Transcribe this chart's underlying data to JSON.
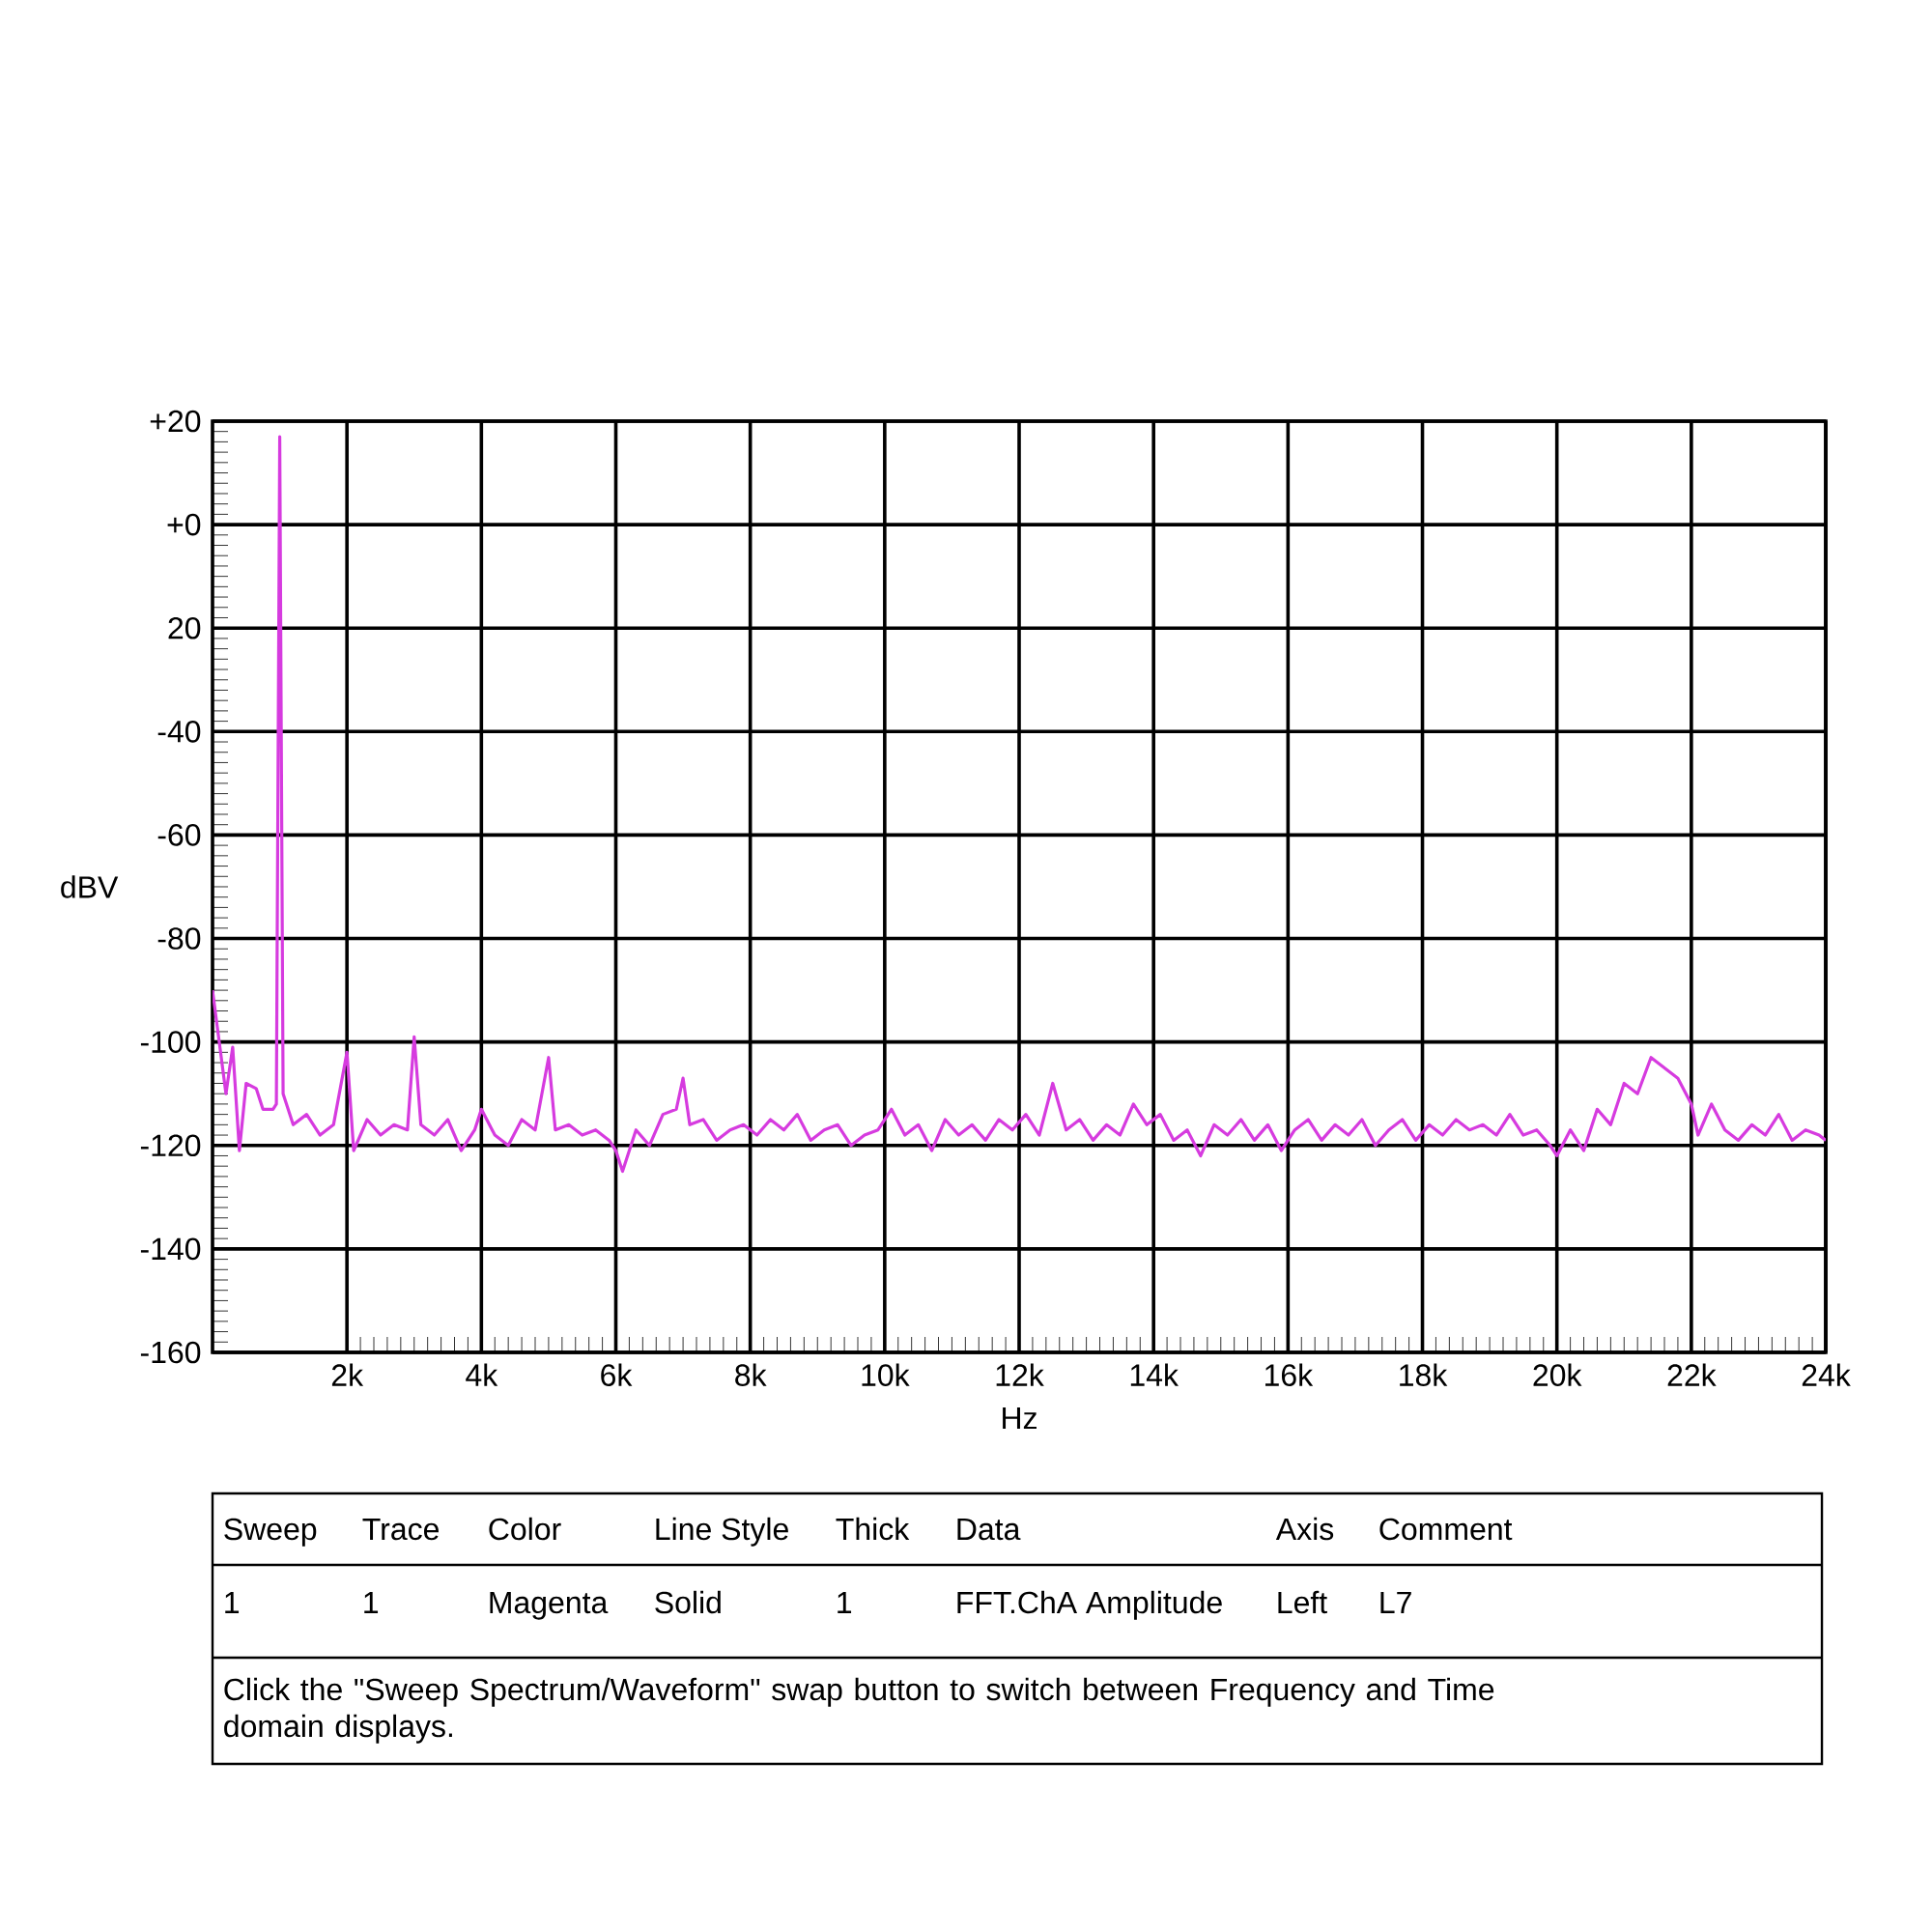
{
  "chart_data": {
    "type": "line",
    "xlabel": "Hz",
    "ylabel": "dBV",
    "x": [
      0,
      100,
      200,
      300,
      400,
      500,
      650,
      750,
      900,
      950,
      1000,
      1050,
      1200,
      1400,
      1600,
      1800,
      2000,
      2100,
      2300,
      2500,
      2700,
      2900,
      3000,
      3100,
      3300,
      3500,
      3700,
      3900,
      4000,
      4200,
      4400,
      4600,
      4800,
      5000,
      5100,
      5300,
      5500,
      5700,
      5900,
      6000,
      6100,
      6300,
      6500,
      6700,
      6900,
      7000,
      7100,
      7300,
      7500,
      7700,
      7900,
      8100,
      8300,
      8500,
      8700,
      8900,
      9100,
      9300,
      9500,
      9700,
      9900,
      10100,
      10300,
      10500,
      10700,
      10900,
      11100,
      11300,
      11500,
      11700,
      11900,
      12100,
      12300,
      12500,
      12700,
      12900,
      13100,
      13300,
      13500,
      13700,
      13900,
      14100,
      14300,
      14500,
      14700,
      14900,
      15100,
      15300,
      15500,
      15700,
      15900,
      16100,
      16300,
      16500,
      16700,
      16900,
      17100,
      17300,
      17500,
      17700,
      17900,
      18100,
      18300,
      18500,
      18700,
      18900,
      19100,
      19300,
      19500,
      19700,
      19900,
      20000,
      20200,
      20400,
      20600,
      20800,
      21000,
      21200,
      21400,
      21600,
      21800,
      22000,
      22100,
      22300,
      22500,
      22700,
      22900,
      23100,
      23300,
      23500,
      23700,
      23900,
      24000
    ],
    "series": [
      {
        "color": "#d63bdf",
        "values": [
          -90,
          -100,
          -110,
          -101,
          -121,
          -108,
          -109,
          -113,
          -113,
          -112,
          17,
          -110,
          -116,
          -114,
          -118,
          -116,
          -102,
          -121,
          -115,
          -118,
          -116,
          -117,
          -99,
          -116,
          -118,
          -115,
          -121,
          -117,
          -113,
          -118,
          -120,
          -115,
          -117,
          -103,
          -117,
          -116,
          -118,
          -117,
          -119,
          -121,
          -125,
          -117,
          -120,
          -114,
          -113,
          -107,
          -116,
          -115,
          -119,
          -117,
          -116,
          -118,
          -115,
          -117,
          -114,
          -119,
          -117,
          -116,
          -120,
          -118,
          -117,
          -113,
          -118,
          -116,
          -121,
          -115,
          -118,
          -116,
          -119,
          -115,
          -117,
          -114,
          -118,
          -108,
          -117,
          -115,
          -119,
          -116,
          -118,
          -112,
          -116,
          -114,
          -119,
          -117,
          -122,
          -116,
          -118,
          -115,
          -119,
          -116,
          -121,
          -117,
          -115,
          -119,
          -116,
          -118,
          -115,
          -120,
          -117,
          -115,
          -119,
          -116,
          -118,
          -115,
          -117,
          -116,
          -118,
          -114,
          -118,
          -117,
          -120,
          -122,
          -117,
          -121,
          -113,
          -116,
          -108,
          -110,
          -103,
          -105,
          -107,
          -112,
          -118,
          -112,
          -117,
          -119,
          -116,
          -118,
          -114,
          -119,
          -117,
          -118,
          -119
        ]
      }
    ],
    "xlim": [
      0,
      24000
    ],
    "ylim": [
      -160,
      20
    ],
    "xticks": [
      {
        "value": 2000,
        "label": "2k"
      },
      {
        "value": 4000,
        "label": "4k"
      },
      {
        "value": 6000,
        "label": "6k"
      },
      {
        "value": 8000,
        "label": "8k"
      },
      {
        "value": 10000,
        "label": "10k"
      },
      {
        "value": 12000,
        "label": "12k"
      },
      {
        "value": 14000,
        "label": "14k"
      },
      {
        "value": 16000,
        "label": "16k"
      },
      {
        "value": 18000,
        "label": "18k"
      },
      {
        "value": 20000,
        "label": "20k"
      },
      {
        "value": 22000,
        "label": "22k"
      },
      {
        "value": 24000,
        "label": "24k"
      }
    ],
    "yticks": [
      -160,
      -140,
      -120,
      -100,
      -80,
      -60,
      -40,
      {
        "value": -20,
        "label": "20"
      },
      {
        "value": 0,
        "label": "+0"
      },
      {
        "value": 20,
        "label": "+20"
      }
    ],
    "grid": true,
    "annotations": [
      "Sweep",
      "Trace",
      "Color",
      "Line Style",
      "Thick",
      "Data",
      "Axis",
      "Comment",
      "1",
      "1",
      "Magenta",
      "Solid",
      "1",
      "FFT.ChA Amplitude",
      "Left",
      "L7",
      "Click the \"Sweep Spectrum/Waveform\" swap button to switch between Frequency and Time domain displays."
    ]
  }
}
